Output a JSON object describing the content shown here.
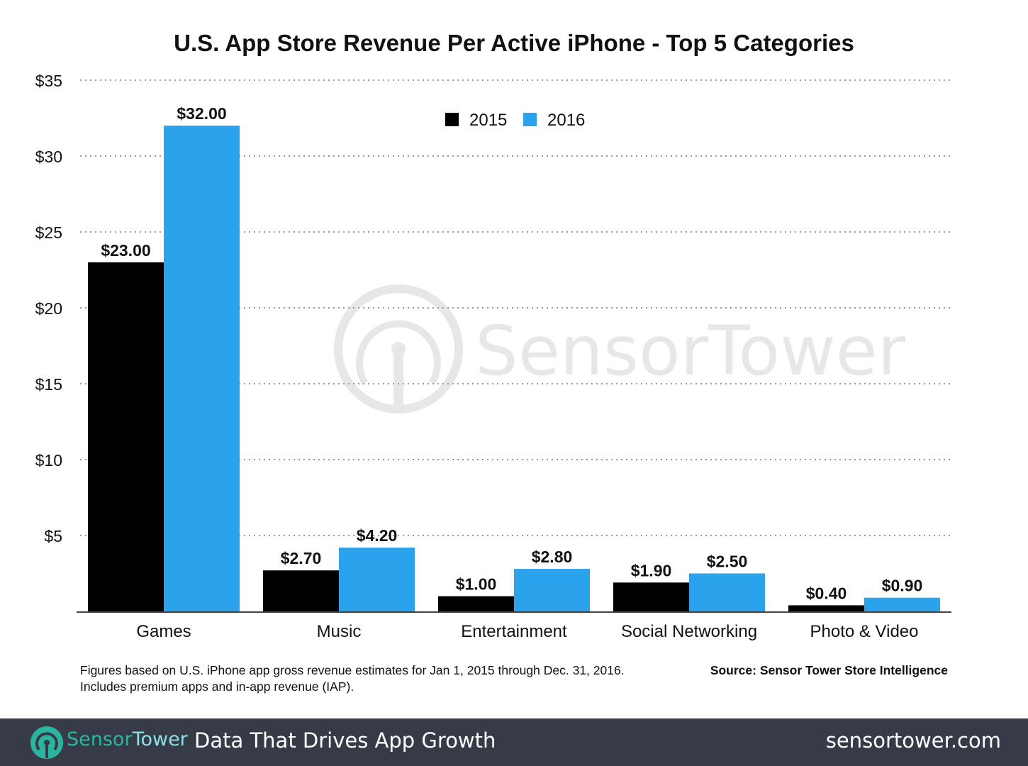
{
  "chart_data": {
    "type": "bar",
    "title": "U.S. App Store Revenue Per Active iPhone - Top 5 Categories",
    "categories": [
      "Games",
      "Music",
      "Entertainment",
      "Social Networking",
      "Photo & Video"
    ],
    "series": [
      {
        "name": "2015",
        "color": "#000000",
        "values": [
          23.0,
          2.7,
          1.0,
          1.9,
          0.4
        ],
        "labels": [
          "$23.00",
          "$2.70",
          "$1.00",
          "$1.90",
          "$0.40"
        ]
      },
      {
        "name": "2016",
        "color": "#2aa3ec",
        "values": [
          32.0,
          4.2,
          2.8,
          2.5,
          0.9
        ],
        "labels": [
          "$32.00",
          "$4.20",
          "$2.80",
          "$2.50",
          "$0.90"
        ]
      }
    ],
    "ylim": [
      0,
      35
    ],
    "yticks": [
      5,
      10,
      15,
      20,
      25,
      30,
      35
    ],
    "ytick_labels": [
      "$5",
      "$10",
      "$15",
      "$20",
      "$25",
      "$30",
      "$35"
    ],
    "grid": "dotted horizontal",
    "legend": "top-center",
    "xlabel": "",
    "ylabel": ""
  },
  "notes": {
    "line1": "Figures based on U.S. iPhone app gross revenue estimates for Jan 1, 2015 through Dec. 31, 2016.",
    "line2": "Includes premium apps and in-app revenue (IAP).",
    "source": "Source: Sensor Tower Store Intelligence"
  },
  "watermark": "SensorTower",
  "footer": {
    "logo_part1": "Sensor",
    "logo_part2": "Tower",
    "tagline": "Data That Drives App Growth",
    "url": "sensortower.com",
    "bg_color": "#363b47"
  }
}
